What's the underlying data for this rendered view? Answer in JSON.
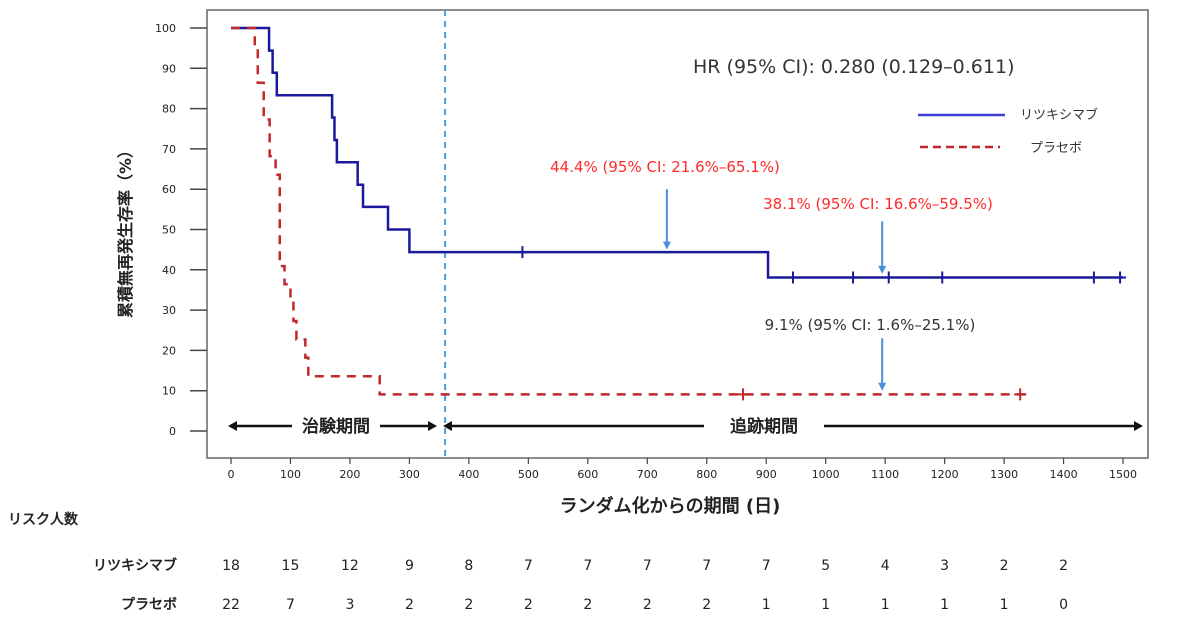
{
  "chart_data": {
    "type": "line",
    "title": "",
    "xlabel": "ランダム化からの期間 (日)",
    "ylabel": "累積無再発生存率（%）",
    "xlim": [
      0,
      1550
    ],
    "ylim": [
      0,
      100
    ],
    "xticks": [
      0,
      100,
      200,
      300,
      400,
      500,
      600,
      700,
      800,
      900,
      1000,
      1100,
      1200,
      1300,
      1400,
      1500
    ],
    "yticks": [
      0,
      10,
      20,
      30,
      40,
      50,
      60,
      70,
      80,
      90,
      100
    ],
    "legend_position": "top-right",
    "hr_text": "HR (95% CI): 0.280 (0.129–0.611)",
    "series": [
      {
        "name": "リツキシマブ",
        "color": "#1a1a9c",
        "style": "solid",
        "steps": [
          [
            0,
            100
          ],
          [
            64,
            94.4
          ],
          [
            70,
            88.9
          ],
          [
            77,
            83.3
          ],
          [
            170,
            77.8
          ],
          [
            174,
            72.2
          ],
          [
            178,
            66.7
          ],
          [
            213,
            61.1
          ],
          [
            222,
            55.6
          ],
          [
            264,
            50.0
          ],
          [
            300,
            44.4
          ],
          [
            903,
            38.1
          ],
          [
            1500,
            38.1
          ]
        ],
        "censored": [
          [
            490,
            44.4
          ],
          [
            945,
            38.1
          ],
          [
            1046,
            38.1
          ],
          [
            1106,
            38.1
          ],
          [
            1196,
            38.1
          ],
          [
            1451,
            38.1
          ],
          [
            1495,
            38.1
          ]
        ]
      },
      {
        "name": "プラセボ",
        "color": "#c0282d",
        "style": "dashed",
        "steps": [
          [
            0,
            100
          ],
          [
            40,
            95.5
          ],
          [
            45,
            86.4
          ],
          [
            55,
            77.3
          ],
          [
            65,
            68.2
          ],
          [
            75,
            63.6
          ],
          [
            82,
            40.9
          ],
          [
            90,
            36.4
          ],
          [
            100,
            31.8
          ],
          [
            105,
            27.3
          ],
          [
            110,
            22.7
          ],
          [
            125,
            18.2
          ],
          [
            130,
            13.6
          ],
          [
            250,
            9.1
          ],
          [
            1343,
            9.1
          ]
        ],
        "censored": [
          [
            861,
            9.1
          ],
          [
            1327,
            9.1
          ]
        ]
      }
    ],
    "annotations": [
      {
        "text": "44.4% (95% CI: 21.6%–65.1%)",
        "color": "#ff2a2a",
        "arrow_day": 733,
        "arrow_from": 60,
        "arrow_to": 45
      },
      {
        "text": "38.1% (95% CI: 16.6%–59.5%)",
        "color": "#ff2a2a",
        "arrow_day": 1095,
        "arrow_from": 52,
        "arrow_to": 39
      },
      {
        "text": "9.1% (95% CI: 1.6%–25.1%)",
        "color": "#333333",
        "arrow_day": 1095,
        "arrow_from": 23,
        "arrow_to": 10
      }
    ],
    "cutoff_day": 360,
    "periods": [
      {
        "label": "治験期間",
        "from": 0,
        "to": 360
      },
      {
        "label": "追跡期間",
        "from": 360,
        "to": 1550
      }
    ],
    "risk_table": {
      "title": "リスク人数",
      "rows": [
        {
          "label": "リツキシマブ",
          "values": [
            "18",
            "15",
            "12",
            "9",
            "8",
            "7",
            "7",
            "7",
            "7",
            "7",
            "5",
            "4",
            "3",
            "2",
            "2"
          ]
        },
        {
          "label": "プラセボ",
          "values": [
            "22",
            "7",
            "3",
            "2",
            "2",
            "2",
            "2",
            "2",
            "2",
            "1",
            "1",
            "1",
            "1",
            "1",
            "0"
          ]
        }
      ]
    },
    "cutoff_color": "#4a9ee0",
    "arrow_color": "#4a90d9"
  }
}
